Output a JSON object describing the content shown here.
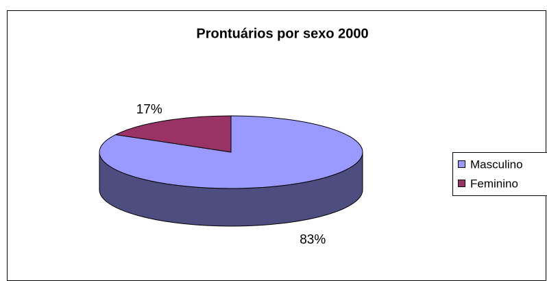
{
  "chart_data": {
    "type": "pie",
    "title": "Prontuários por sexo 2000",
    "categories": [
      "Masculino",
      "Feminino"
    ],
    "values": [
      83,
      17
    ],
    "value_labels": [
      "83%",
      "17%"
    ],
    "colors": [
      "#9999ff",
      "#993366"
    ],
    "legend": "right"
  }
}
